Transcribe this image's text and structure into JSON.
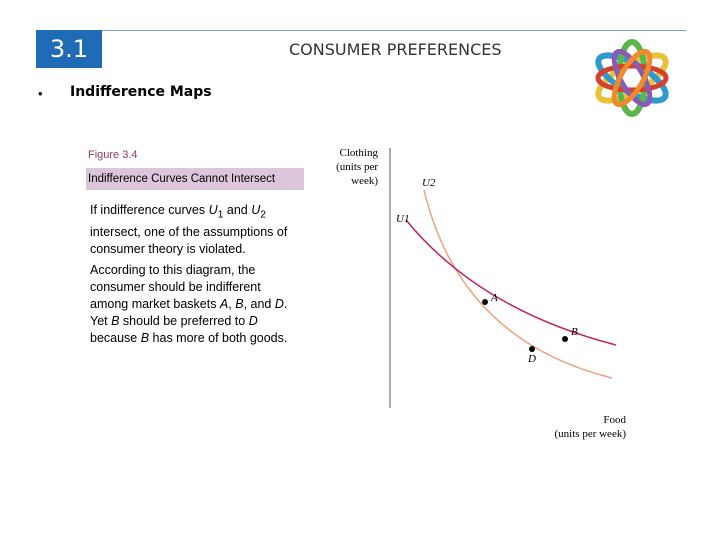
{
  "slide": {
    "section_number": "3.1",
    "title": "CONSUMER PREFERENCES",
    "bullet": "Indifference Maps"
  },
  "figure": {
    "label": "Figure 3.4",
    "title": "Indifference Curves Cannot Intersect",
    "caption": {
      "p1": [
        "If indifference curves ",
        "U",
        "1",
        " and ",
        "U",
        "2",
        " intersect, one of the assumptions of consumer theory is violated."
      ],
      "p2": [
        "According to this diagram, the consumer should be indifferent among market baskets ",
        "A",
        ", ",
        "B",
        ", and ",
        "D",
        ". Yet ",
        "B",
        " should be preferred to ",
        "D",
        " because ",
        "B",
        " has more of both goods."
      ]
    }
  },
  "chart_data": {
    "type": "line",
    "ylabel": [
      "Clothing",
      "(units per",
      "week)"
    ],
    "xlabel": [
      "Food",
      "(units per week)"
    ],
    "series": [
      {
        "name": "U1",
        "color": "#c0245e"
      },
      {
        "name": "U2",
        "color": "#f0a07a"
      }
    ],
    "points": [
      {
        "label": "A"
      },
      {
        "label": "B"
      },
      {
        "label": "D"
      }
    ]
  },
  "colors": {
    "accent": "#1f6bb5",
    "caption_band": "#ddc6db",
    "figure_label": "#8a3a6a"
  }
}
